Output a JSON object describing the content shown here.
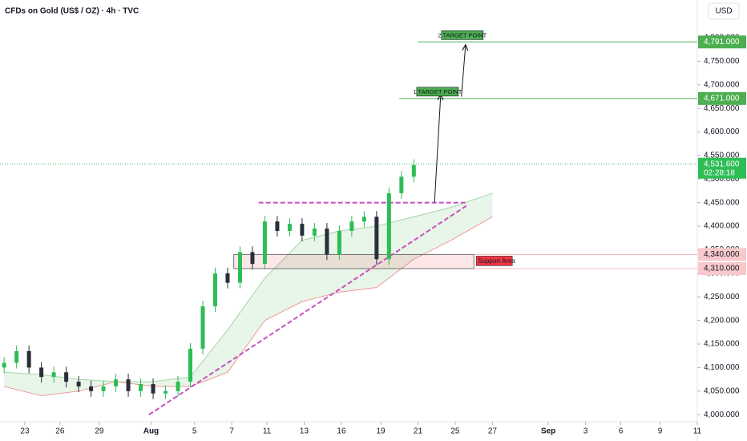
{
  "chart_data": {
    "type": "candlestick",
    "title": "CFDs on Gold (US$ / OZ) · 4h · TVC",
    "currency": "USD",
    "up_color": "#2ebd55",
    "down_color": "#2a2e39",
    "grid": false,
    "xlim": [
      -2,
      335
    ],
    "ylim": [
      3985,
      4880
    ],
    "xticks": [
      {
        "value": 10,
        "label": "23"
      },
      {
        "value": 27,
        "label": "26"
      },
      {
        "value": 46,
        "label": "29"
      },
      {
        "value": 71,
        "label": "Aug"
      },
      {
        "value": 92,
        "label": "5"
      },
      {
        "value": 110,
        "label": "7"
      },
      {
        "value": 127,
        "label": "11"
      },
      {
        "value": 145,
        "label": "13"
      },
      {
        "value": 163,
        "label": "16"
      },
      {
        "value": 182,
        "label": "19"
      },
      {
        "value": 200,
        "label": "21"
      },
      {
        "value": 218,
        "label": "25"
      },
      {
        "value": 236,
        "label": "27"
      },
      {
        "value": 263,
        "label": "Sep"
      },
      {
        "value": 281,
        "label": "3"
      },
      {
        "value": 298,
        "label": "6"
      },
      {
        "value": 317,
        "label": "9"
      },
      {
        "value": 335,
        "label": "11"
      }
    ],
    "yticks": [
      {
        "value": 4000,
        "label": "4,000.000"
      },
      {
        "value": 4050,
        "label": "4,050.000"
      },
      {
        "value": 4100,
        "label": "4,100.000"
      },
      {
        "value": 4150,
        "label": "4,150.000"
      },
      {
        "value": 4200,
        "label": "4,200.000"
      },
      {
        "value": 4250,
        "label": "4,250.000"
      },
      {
        "value": 4300,
        "label": "4,300.000"
      },
      {
        "value": 4350,
        "label": "4,350.000"
      },
      {
        "value": 4400,
        "label": "4,400.000"
      },
      {
        "value": 4450,
        "label": "4,450.000"
      },
      {
        "value": 4500,
        "label": "4,500.000"
      },
      {
        "value": 4550,
        "label": "4,550.000"
      },
      {
        "value": 4600,
        "label": "4,600.000"
      },
      {
        "value": 4650,
        "label": "4,650.000"
      },
      {
        "value": 4700,
        "label": "4,700.000"
      },
      {
        "value": 4750,
        "label": "4,750.000"
      },
      {
        "value": 4800,
        "label": "4,800.000"
      }
    ],
    "x": [
      0,
      6,
      12,
      18,
      24,
      30,
      36,
      42,
      48,
      54,
      60,
      66,
      72,
      78,
      84,
      90,
      96,
      102,
      108,
      114,
      120,
      126,
      132,
      138,
      144,
      150,
      156,
      162,
      168,
      174,
      180,
      186,
      192,
      198
    ],
    "open": [
      4100,
      4110,
      4135,
      4100,
      4080,
      4090,
      4070,
      4060,
      4050,
      4060,
      4075,
      4050,
      4065,
      4045,
      4050,
      4070,
      4140,
      4230,
      4300,
      4280,
      4345,
      4320,
      4410,
      4390,
      4405,
      4380,
      4395,
      4340,
      4390,
      4410,
      4420,
      4330,
      4470,
      4505
    ],
    "high": [
      4122,
      4147,
      4147,
      4112,
      4102,
      4102,
      4082,
      4072,
      4072,
      4087,
      4087,
      4077,
      4077,
      4062,
      4082,
      4152,
      4242,
      4312,
      4312,
      4357,
      4357,
      4422,
      4422,
      4417,
      4417,
      4407,
      4407,
      4402,
      4422,
      4432,
      4432,
      4482,
      4517,
      4542
    ],
    "low": [
      4088,
      4098,
      4088,
      4068,
      4068,
      4058,
      4048,
      4038,
      4038,
      4048,
      4038,
      4038,
      4033,
      4033,
      4038,
      4058,
      4128,
      4218,
      4268,
      4268,
      4308,
      4308,
      4378,
      4378,
      4368,
      4368,
      4328,
      4328,
      4378,
      4398,
      4318,
      4318,
      4458,
      4493
    ],
    "close": [
      4110,
      4135,
      4100,
      4080,
      4090,
      4070,
      4060,
      4050,
      4060,
      4075,
      4050,
      4065,
      4045,
      4050,
      4070,
      4140,
      4230,
      4300,
      4280,
      4345,
      4320,
      4410,
      4390,
      4405,
      4380,
      4395,
      4340,
      4390,
      4410,
      4420,
      4330,
      4470,
      4505,
      4530
    ],
    "cloud": {
      "color": "#a5d6a7",
      "x": [
        0,
        18,
        36,
        54,
        72,
        90,
        108,
        126,
        144,
        162,
        180,
        198,
        216,
        236
      ],
      "span_a": [
        4090,
        4085,
        4075,
        4070,
        4070,
        4080,
        4180,
        4290,
        4370,
        4390,
        4400,
        4420,
        4440,
        4470
      ],
      "span_b": [
        4060,
        4040,
        4050,
        4070,
        4060,
        4060,
        4090,
        4200,
        4240,
        4260,
        4270,
        4330,
        4370,
        4420
      ]
    },
    "current_price": {
      "value": 4531.6,
      "label": "4,531.600",
      "countdown": "02:28:18"
    },
    "targets": [
      {
        "text": "1 TARGET POINT",
        "price": {
          "value": 4671,
          "label": "4,671.000"
        },
        "x": 191,
        "arrow_x": [
          208,
          211
        ],
        "arrow_y": [
          4450,
          4680
        ]
      },
      {
        "text": "2 TARGET POINT",
        "price": {
          "value": 4791,
          "label": "4,791.000"
        },
        "x": 200,
        "arrow_x": [
          221,
          223
        ],
        "arrow_y": [
          4675,
          4785
        ]
      }
    ],
    "support": {
      "text": "Support Area",
      "low": {
        "value": 4310,
        "label": "4,310.000"
      },
      "high": {
        "value": 4340,
        "label": "4,340.000"
      },
      "x": [
        111,
        227
      ]
    },
    "neckline": {
      "y": 4450,
      "x": [
        123,
        224
      ]
    },
    "trendline": {
      "x": [
        70,
        224
      ],
      "y": [
        4000,
        4445
      ]
    }
  }
}
